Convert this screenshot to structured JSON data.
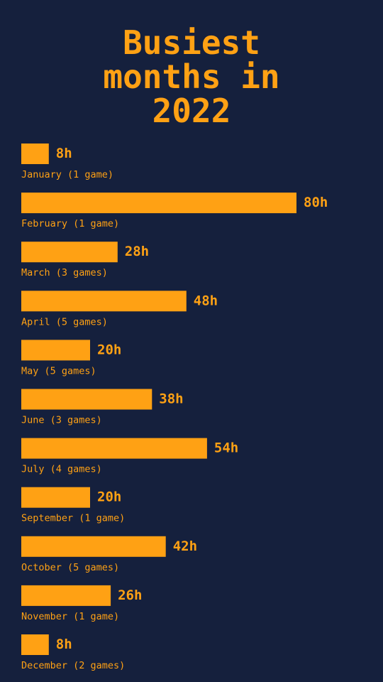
{
  "title": "Busiest\nmonths in\n2022",
  "chart_data": {
    "type": "bar",
    "orientation": "horizontal",
    "title": "Busiest months in 2022",
    "unit": "h",
    "categories": [
      "January (1 game)",
      "February (1 game)",
      "March (3 games)",
      "April (5 games)",
      "May (5 games)",
      "June (3 games)",
      "July (4 games)",
      "September (1 game)",
      "October (5 games)",
      "November (1 game)",
      "December (2 games)"
    ],
    "values": [
      8,
      80,
      28,
      48,
      20,
      38,
      54,
      20,
      42,
      26,
      8
    ],
    "value_labels": [
      "8h",
      "80h",
      "28h",
      "48h",
      "20h",
      "38h",
      "54h",
      "20h",
      "42h",
      "26h",
      "8h"
    ],
    "grid": false,
    "legend": "none"
  },
  "colors": {
    "background": "#15203d",
    "accent": "#ffa114"
  }
}
